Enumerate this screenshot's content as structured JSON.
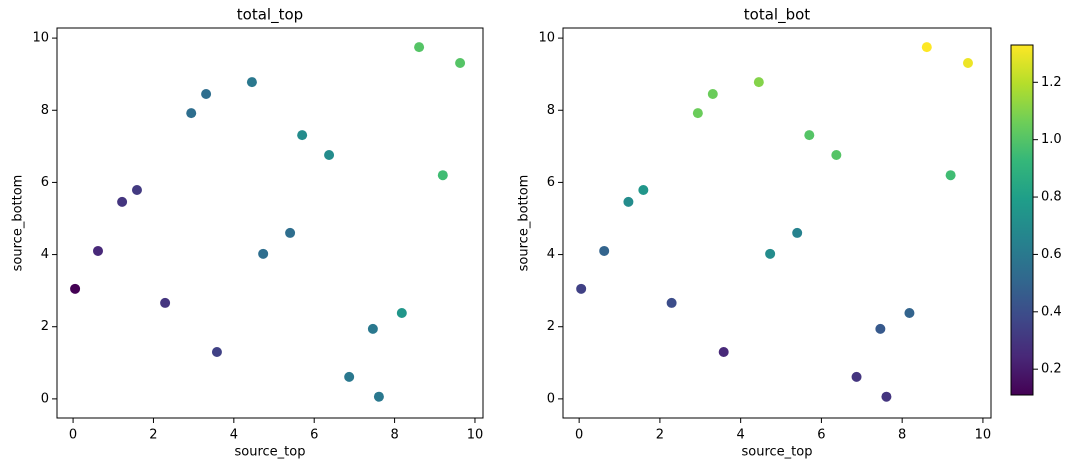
{
  "chart_data": [
    {
      "type": "scatter",
      "title": "total_top",
      "xlabel": "source_top",
      "ylabel": "source_bottom",
      "x": [
        0.05,
        0.62,
        1.22,
        1.59,
        2.29,
        2.94,
        3.31,
        3.58,
        4.45,
        4.73,
        5.4,
        5.7,
        6.37,
        6.87,
        7.46,
        7.61,
        8.18,
        8.61,
        9.2,
        9.63
      ],
      "y": [
        3.05,
        4.1,
        5.46,
        5.79,
        2.66,
        7.92,
        8.45,
        1.3,
        8.78,
        4.02,
        4.6,
        7.31,
        6.76,
        0.61,
        1.94,
        0.06,
        2.38,
        9.75,
        6.2,
        9.31
      ],
      "values": [
        0.11,
        0.25,
        0.3,
        0.32,
        0.3,
        0.55,
        0.55,
        0.35,
        0.6,
        0.55,
        0.55,
        0.7,
        0.7,
        0.6,
        0.6,
        0.6,
        0.75,
        1.0,
        0.95,
        1.0
      ],
      "xlim": [
        -0.4,
        10.2
      ],
      "ylim": [
        -0.53,
        10.28
      ],
      "xticks": [
        0,
        2,
        4,
        6,
        8,
        10
      ],
      "yticks": [
        0,
        2,
        4,
        6,
        8,
        10
      ],
      "colormap": "viridis",
      "clim": [
        0.11,
        1.33
      ]
    },
    {
      "type": "scatter",
      "title": "total_bot",
      "xlabel": "source_top",
      "ylabel": "source_bottom",
      "x": [
        0.05,
        0.62,
        1.22,
        1.59,
        2.29,
        2.94,
        3.31,
        3.58,
        4.45,
        4.73,
        5.4,
        5.7,
        6.37,
        6.87,
        7.46,
        7.61,
        8.18,
        8.61,
        9.2,
        9.63
      ],
      "y": [
        3.05,
        4.1,
        5.46,
        5.79,
        2.66,
        7.92,
        8.45,
        1.3,
        8.78,
        4.02,
        4.6,
        7.31,
        6.76,
        0.61,
        1.94,
        0.06,
        2.38,
        9.75,
        6.2,
        9.31
      ],
      "values": [
        0.35,
        0.5,
        0.7,
        0.75,
        0.4,
        1.05,
        1.05,
        0.25,
        1.1,
        0.7,
        0.65,
        1.0,
        1.0,
        0.3,
        0.45,
        0.3,
        0.5,
        1.33,
        0.95,
        1.3
      ],
      "xlim": [
        -0.4,
        10.2
      ],
      "ylim": [
        -0.53,
        10.28
      ],
      "xticks": [
        0,
        2,
        4,
        6,
        8,
        10
      ],
      "yticks": [
        0,
        2,
        4,
        6,
        8,
        10
      ],
      "colormap": "viridis",
      "clim": [
        0.11,
        1.33
      ],
      "cticks": [
        0.2,
        0.4,
        0.6,
        0.8,
        1.0,
        1.2
      ]
    }
  ]
}
